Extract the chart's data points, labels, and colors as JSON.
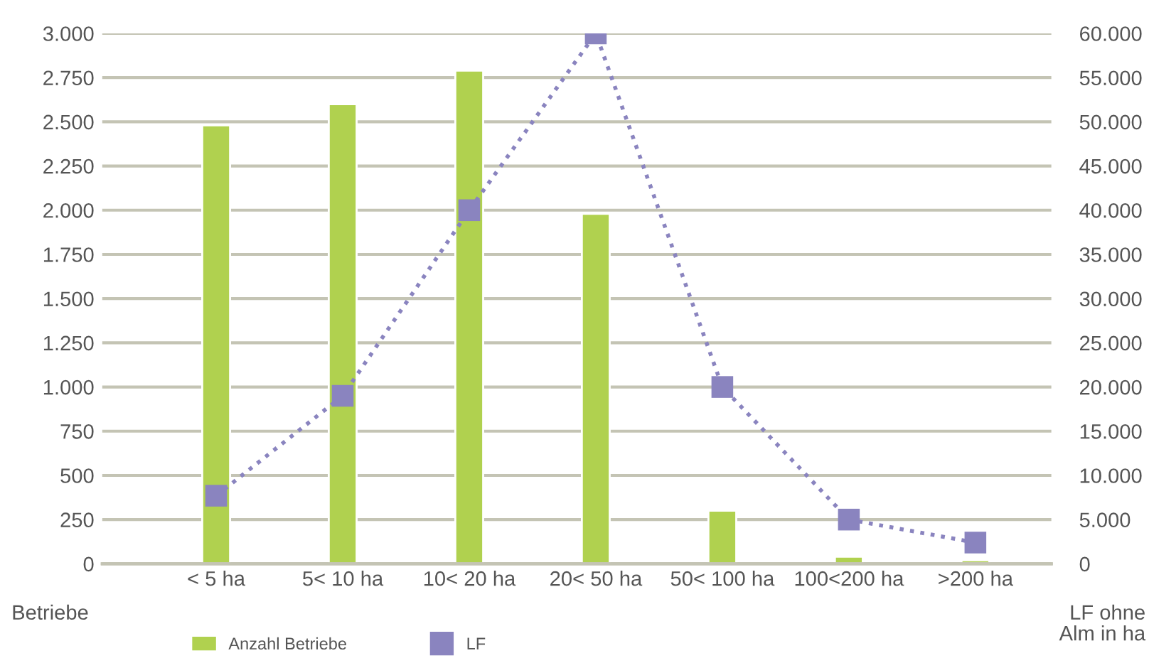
{
  "chart_data": {
    "type": "bar",
    "categories": [
      "< 5 ha",
      "5< 10 ha",
      "10< 20 ha",
      "20< 50 ha",
      "50< 100 ha",
      "100<200 ha",
      ">200 ha"
    ],
    "series": [
      {
        "name": "Anzahl Betriebe",
        "color": "#b0d14f",
        "values": [
          2480,
          2600,
          2790,
          1980,
          300,
          40,
          20
        ]
      },
      {
        "name": "LF",
        "type": "line",
        "axis": "y2",
        "color": "#8a84bf",
        "marker": "square",
        "line_style": "dotted",
        "values": [
          7700,
          19000,
          40000,
          60000,
          20000,
          5000,
          2400
        ]
      }
    ],
    "ylabel": "Betriebe",
    "y2label": "LF ohne\nAlm in ha",
    "ylim": [
      0,
      3000
    ],
    "yticks": [
      {
        "value": 0,
        "label": "0"
      },
      {
        "value": 250,
        "label": "250"
      },
      {
        "value": 500,
        "label": "500"
      },
      {
        "value": 750,
        "label": "750"
      },
      {
        "value": 1000,
        "label": "1.000"
      },
      {
        "value": 1250,
        "label": "1.250"
      },
      {
        "value": 1500,
        "label": "1.500"
      },
      {
        "value": 1750,
        "label": "1.750"
      },
      {
        "value": 2000,
        "label": "2.000"
      },
      {
        "value": 2250,
        "label": "2.250"
      },
      {
        "value": 2500,
        "label": "2.500"
      },
      {
        "value": 2750,
        "label": "2.750"
      },
      {
        "value": 3000,
        "label": "3.000"
      }
    ],
    "y2lim": [
      0,
      60000
    ],
    "y2ticks": [
      {
        "value": 0,
        "label": "0"
      },
      {
        "value": 5000,
        "label": "5.000"
      },
      {
        "value": 10000,
        "label": "10.000"
      },
      {
        "value": 15000,
        "label": "15.000"
      },
      {
        "value": 20000,
        "label": "20.000"
      },
      {
        "value": 25000,
        "label": "25.000"
      },
      {
        "value": 30000,
        "label": "30.000"
      },
      {
        "value": 35000,
        "label": "35.000"
      },
      {
        "value": 40000,
        "label": "40.000"
      },
      {
        "value": 45000,
        "label": "45.000"
      },
      {
        "value": 50000,
        "label": "50.000"
      },
      {
        "value": 55000,
        "label": "55.000"
      },
      {
        "value": 60000,
        "label": "60.000"
      }
    ],
    "grid": "y",
    "legend": "bottom"
  }
}
